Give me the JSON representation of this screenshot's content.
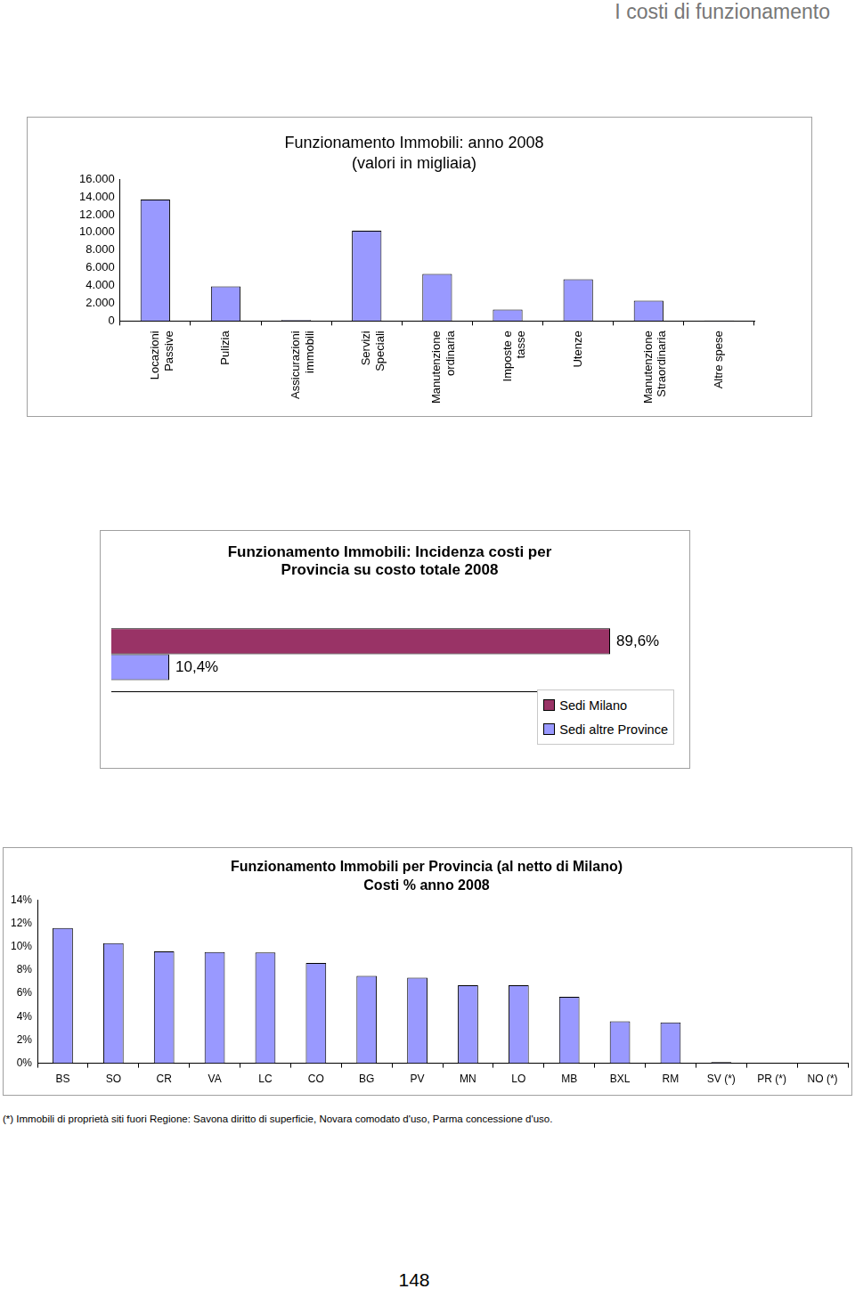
{
  "header": "I costi di funzionamento",
  "chart_data": [
    {
      "type": "bar",
      "title": "Funzionamento Immobili: anno 2008",
      "subtitle": "(valori in migliaia)",
      "categories": [
        "Locazioni Passive",
        "Pulizia",
        "Assicurazioni immobili",
        "Servizi Speciali",
        "Manutenzione ordinaria",
        "Imposte e tasse",
        "Utenze",
        "Manutenzione Straordinaria",
        "Altre spese"
      ],
      "values": [
        13700,
        3900,
        100,
        10200,
        5300,
        1300,
        4700,
        2300,
        50
      ],
      "color": "#9999ff",
      "ylim": [
        0,
        16000
      ],
      "yticks": [
        0,
        {
          "value": 2000,
          "label": "2.000"
        },
        {
          "value": 4000,
          "label": "4.000"
        },
        {
          "value": 6000,
          "label": "6.000"
        },
        {
          "value": 8000,
          "label": "8.000"
        },
        {
          "value": 10000,
          "label": "10.000"
        },
        {
          "value": 12000,
          "label": "12.000"
        },
        {
          "value": 14000,
          "label": "14.000"
        },
        {
          "value": 16000,
          "label": "16.000"
        }
      ],
      "grid": false
    },
    {
      "type": "bar",
      "orientation": "horizontal",
      "title": "Funzionamento Immobili: Incidenza costi per Provincia su costo totale 2008",
      "categories": [
        null
      ],
      "series": [
        {
          "name": "Sedi Milano",
          "color": "#993366",
          "values": [
            89.6
          ],
          "value_labels": [
            "89,6%"
          ]
        },
        {
          "name": "Sedi altre Province",
          "color": "#9999ff",
          "values": [
            10.4
          ],
          "value_labels": [
            "10,4%"
          ]
        }
      ],
      "xlim": [
        0,
        100
      ],
      "data_labels": true,
      "tick_labels": false,
      "legend": "lower right",
      "grid": false
    },
    {
      "type": "bar",
      "title": "Funzionamento Immobili per Provincia (al netto di Milano)",
      "subtitle": "Costi % anno 2008",
      "categories": [
        "BS",
        "SO",
        "CR",
        "VA",
        "LC",
        "CO",
        "BG",
        "PV",
        "MN",
        "LO",
        "MB",
        "BXL",
        "RM",
        "SV (*)",
        "PR (*)",
        "NO (*)"
      ],
      "values": [
        11.6,
        10.3,
        9.6,
        9.55,
        9.5,
        8.6,
        7.5,
        7.35,
        6.7,
        6.7,
        5.7,
        3.6,
        3.5,
        0.1,
        0,
        0
      ],
      "color": "#9999ff",
      "ylim": [
        0,
        14
      ],
      "yticks": [
        {
          "value": 0,
          "label": "0%"
        },
        {
          "value": 2,
          "label": "2%"
        },
        {
          "value": 4,
          "label": "4%"
        },
        {
          "value": 6,
          "label": "6%"
        },
        {
          "value": 8,
          "label": "8%"
        },
        {
          "value": 10,
          "label": "10%"
        },
        {
          "value": 12,
          "label": "12%"
        },
        {
          "value": 14,
          "label": "14%"
        }
      ],
      "grid": false
    }
  ],
  "footnote": "(*) Immobili di proprietà siti fuori Regione: Savona diritto di superficie, Novara comodato d'uso, Parma concessione d'uso.",
  "page_number": "148"
}
